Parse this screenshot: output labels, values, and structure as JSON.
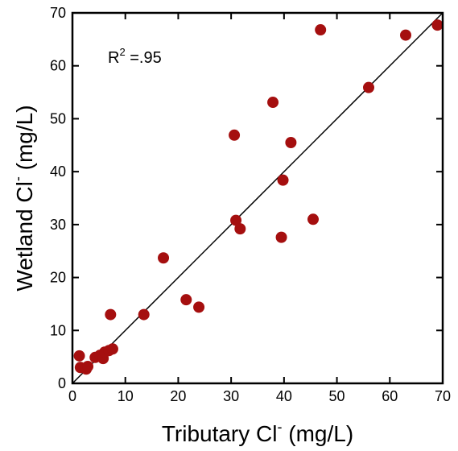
{
  "chart_data": {
    "type": "scatter",
    "xlabel": {
      "main": "Tributary Cl",
      "sup": "-",
      "unit": " (mg/L)"
    },
    "ylabel": {
      "main": "Wetland Cl",
      "sup": "-",
      "unit": " (mg/L)"
    },
    "xlim": [
      0,
      70
    ],
    "ylim": [
      0,
      70
    ],
    "xticks": [
      0,
      10,
      20,
      30,
      40,
      50,
      60,
      70
    ],
    "yticks": [
      0,
      10,
      20,
      30,
      40,
      50,
      60,
      70
    ],
    "annotation": {
      "base": "R",
      "sup": "2",
      "rest": " =.95"
    },
    "point_color": "#a50f0f",
    "reference_line": {
      "type": "1:1",
      "from": [
        0,
        0
      ],
      "to": [
        70,
        70
      ]
    },
    "points": [
      {
        "x": 1.3,
        "y": 5.2
      },
      {
        "x": 1.5,
        "y": 3.0
      },
      {
        "x": 2.6,
        "y": 2.7
      },
      {
        "x": 2.9,
        "y": 3.2
      },
      {
        "x": 4.3,
        "y": 4.9
      },
      {
        "x": 5.2,
        "y": 5.3
      },
      {
        "x": 5.8,
        "y": 4.7
      },
      {
        "x": 6.1,
        "y": 5.9
      },
      {
        "x": 6.9,
        "y": 6.2
      },
      {
        "x": 7.6,
        "y": 6.5
      },
      {
        "x": 7.2,
        "y": 13.0
      },
      {
        "x": 13.5,
        "y": 13.0
      },
      {
        "x": 17.2,
        "y": 23.7
      },
      {
        "x": 21.5,
        "y": 15.8
      },
      {
        "x": 23.9,
        "y": 14.4
      },
      {
        "x": 30.6,
        "y": 46.9
      },
      {
        "x": 30.9,
        "y": 30.8
      },
      {
        "x": 31.7,
        "y": 29.2
      },
      {
        "x": 37.9,
        "y": 53.1
      },
      {
        "x": 39.5,
        "y": 27.6
      },
      {
        "x": 39.8,
        "y": 38.4
      },
      {
        "x": 41.3,
        "y": 45.5
      },
      {
        "x": 45.5,
        "y": 31.0
      },
      {
        "x": 46.9,
        "y": 66.8
      },
      {
        "x": 56.0,
        "y": 55.9
      },
      {
        "x": 63.0,
        "y": 65.8
      },
      {
        "x": 69.0,
        "y": 67.7
      }
    ]
  }
}
